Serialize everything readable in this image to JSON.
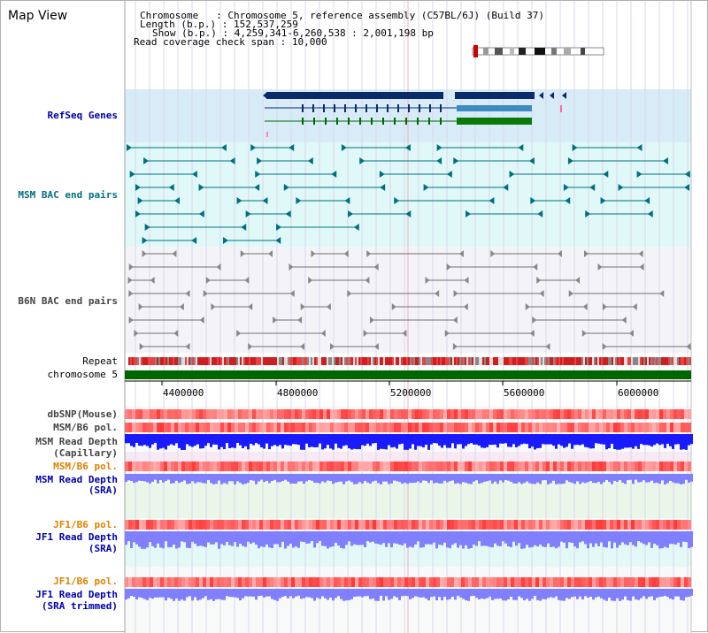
{
  "page": {
    "title": "Map View"
  },
  "info": {
    "chromosome_key": "Chromosome",
    "chromosome_value": "Chromosome 5, reference assembly (C57BL/6J) (Build 37)",
    "length_key": "Length (b.p.)",
    "length_value": "152,537,259",
    "show_key": "Show (b.p.)",
    "show_value": "4,259,341-6,260,538 : 2,001,198 bp",
    "coverage_key": "Read coverage check span",
    "coverage_value": "10,000"
  },
  "tracks": {
    "refseq": "RefSeq Genes",
    "msm_bac": "MSM BAC end pairs",
    "b6n_bac": "B6N BAC end pairs",
    "repeat": "Repeat",
    "chromosome": "chromosome 5",
    "dbsnp": "dbSNP(Mouse)",
    "msm_b6_pol_1": "MSM/B6 pol.",
    "msm_read_depth_cap_1": "MSM Read Depth",
    "msm_read_depth_cap_2": "(Capillary)",
    "msm_b6_pol_2": "MSM/B6 pol.",
    "msm_read_depth_sra_1": "MSM Read Depth",
    "msm_read_depth_sra_2": "(SRA)",
    "jf1_b6_pol_1": "JF1/B6 pol.",
    "jf1_read_depth_sra_1": "JF1 Read Depth",
    "jf1_read_depth_sra_2": "(SRA)",
    "jf1_b6_pol_2": "JF1/B6 pol.",
    "jf1_read_depth_trim_1": "JF1 Read Depth",
    "jf1_read_depth_trim_2": "(SRA trimmed)"
  },
  "axis": {
    "ticks": [
      "4400000",
      "4800000",
      "5200000",
      "5600000",
      "6000000"
    ]
  },
  "colors": {
    "refseq_bg": "#d8ecf8",
    "msm_bg": "#e0f8f8",
    "b6n_bg": "#f4f4f8",
    "chrom_bar": "#006600",
    "depth_blue": "#1a1aff",
    "depth_light": "#8080ff",
    "pol_red": "#ff5050",
    "msm_teal": "#007080",
    "b6n_grey": "#707070"
  }
}
